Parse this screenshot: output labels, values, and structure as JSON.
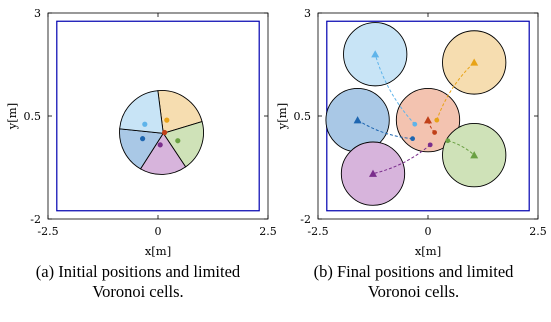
{
  "chart_data": [
    {
      "type": "scatter",
      "panel": "a",
      "caption_lines": [
        "(a) Initial positions and limited",
        "Voronoi cells."
      ],
      "xlabel": "x[m]",
      "ylabel": "y[m]",
      "xlim": [
        -2.5,
        2.5
      ],
      "ylim": [
        -2,
        3
      ],
      "xticks": [
        "-2.5",
        "0",
        "2.5"
      ],
      "yticks": [
        "-2",
        "0.5",
        "3"
      ],
      "boundary_color": "#0000b0",
      "cell_edge_color": "#000000",
      "agents": [
        {
          "color": "#5fb4ea",
          "cell_fill": "#c8e4f6",
          "marker": "dot",
          "x": -0.3,
          "y": 0.3
        },
        {
          "color": "#e8a317",
          "cell_fill": "#f6ddb0",
          "marker": "dot",
          "x": 0.2,
          "y": 0.4
        },
        {
          "color": "#1e66b0",
          "cell_fill": "#a9c8e6",
          "marker": "dot",
          "x": -0.35,
          "y": -0.05
        },
        {
          "color": "#c04018",
          "cell_fill": "#f3c3b0",
          "marker": "dot",
          "x": 0.15,
          "y": 0.1
        },
        {
          "color": "#6aa042",
          "cell_fill": "#cfe2b8",
          "marker": "dot",
          "x": 0.45,
          "y": -0.1
        },
        {
          "color": "#7a2e8c",
          "cell_fill": "#d7b4dc",
          "marker": "dot",
          "x": 0.05,
          "y": -0.2
        }
      ]
    },
    {
      "type": "scatter",
      "panel": "b",
      "caption_lines": [
        "(b) Final positions and limited",
        "Voronoi cells."
      ],
      "xlabel": "x[m]",
      "ylabel": "y[m]",
      "xlim": [
        -2.5,
        2.5
      ],
      "ylim": [
        -2,
        3
      ],
      "xticks": [
        "-2.5",
        "0",
        "2.5"
      ],
      "yticks": [
        "-2",
        "0.5",
        "3"
      ],
      "boundary_color": "#0000b0",
      "cell_edge_color": "#000000",
      "agents": [
        {
          "color": "#5fb4ea",
          "cell_fill": "#c8e4f6",
          "start": [
            -0.3,
            0.3
          ],
          "end": [
            -1.2,
            2.0
          ]
        },
        {
          "color": "#e8a317",
          "cell_fill": "#f6ddb0",
          "start": [
            0.2,
            0.4
          ],
          "end": [
            1.05,
            1.8
          ]
        },
        {
          "color": "#1e66b0",
          "cell_fill": "#a9c8e6",
          "start": [
            -0.35,
            -0.05
          ],
          "end": [
            -1.6,
            0.4
          ]
        },
        {
          "color": "#c04018",
          "cell_fill": "#f3c3b0",
          "start": [
            0.15,
            0.1
          ],
          "end": [
            0.0,
            0.4
          ]
        },
        {
          "color": "#6aa042",
          "cell_fill": "#cfe2b8",
          "start": [
            0.45,
            -0.1
          ],
          "end": [
            1.05,
            -0.45
          ]
        },
        {
          "color": "#7a2e8c",
          "cell_fill": "#d7b4dc",
          "start": [
            0.05,
            -0.2
          ],
          "end": [
            -1.25,
            -0.9
          ]
        }
      ]
    }
  ]
}
